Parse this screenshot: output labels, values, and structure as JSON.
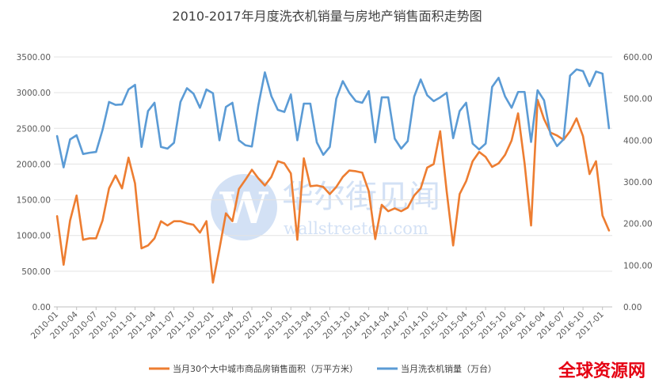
{
  "chart_data": {
    "type": "line",
    "title": "2010-2017年月度洗衣机销量与房地产销售面积走势图",
    "y_left": {
      "ticks": [
        "0.00",
        "500.00",
        "1000.00",
        "1500.00",
        "2000.00",
        "2500.00",
        "3000.00",
        "3500.00"
      ],
      "ylim": [
        0,
        3500
      ]
    },
    "y_right": {
      "ticks": [
        "0.00",
        "100.00",
        "200.00",
        "300.00",
        "400.00",
        "500.00",
        "600.00"
      ],
      "ylim": [
        0,
        600
      ]
    },
    "x_tick_labels": [
      "2010-01",
      "2010-04",
      "2010-07",
      "2010-10",
      "2011-01",
      "2011-04",
      "2011-07",
      "2011-10",
      "2012-01",
      "2012-04",
      "2012-07",
      "2012-10",
      "2013-01",
      "2013-04",
      "2013-07",
      "2013-10",
      "2014-01",
      "2014-04",
      "2014-07",
      "2014-10",
      "2015-01",
      "2015-04",
      "2015-07",
      "2015-10",
      "2016-01",
      "2016-04",
      "2016-07",
      "2016-10",
      "2017-01"
    ],
    "x_start": "2010-01",
    "grid": true,
    "legend_position": "bottom",
    "series": [
      {
        "name": "当月30个大中城市商品房销售面积（万平方米）",
        "axis": "left",
        "color": "#ED7D31",
        "values": [
          1270,
          590,
          1210,
          1560,
          940,
          960,
          960,
          1210,
          1660,
          1840,
          1660,
          2090,
          1730,
          820,
          860,
          960,
          1200,
          1140,
          1200,
          1200,
          1170,
          1150,
          1040,
          1200,
          340,
          810,
          1310,
          1200,
          1650,
          1780,
          1920,
          1800,
          1700,
          1820,
          2040,
          2010,
          1870,
          940,
          2080,
          1690,
          1700,
          1680,
          1580,
          1680,
          1820,
          1910,
          1900,
          1880,
          1620,
          950,
          1430,
          1340,
          1380,
          1340,
          1390,
          1560,
          1660,
          1950,
          2000,
          2460,
          1620,
          860,
          1580,
          1760,
          2040,
          2170,
          2100,
          1960,
          2010,
          2130,
          2330,
          2710,
          2010,
          1140,
          2900,
          2630,
          2440,
          2400,
          2340,
          2460,
          2640,
          2390,
          1860,
          2040,
          1280,
          1070
        ]
      },
      {
        "name": "当月洗衣机销量（万台）",
        "axis": "right",
        "color": "#5B9BD5",
        "values": [
          410,
          335,
          402,
          412,
          367,
          370,
          372,
          425,
          492,
          485,
          486,
          522,
          533,
          384,
          470,
          490,
          384,
          380,
          394,
          492,
          525,
          512,
          478,
          522,
          513,
          400,
          480,
          490,
          400,
          388,
          385,
          484,
          563,
          506,
          473,
          468,
          510,
          400,
          488,
          488,
          395,
          365,
          384,
          500,
          542,
          514,
          494,
          490,
          518,
          395,
          503,
          503,
          404,
          380,
          398,
          505,
          546,
          508,
          494,
          503,
          514,
          405,
          470,
          490,
          392,
          378,
          392,
          528,
          550,
          505,
          478,
          516,
          516,
          396,
          520,
          496,
          414,
          386,
          402,
          555,
          570,
          566,
          530,
          565,
          560,
          429
        ]
      }
    ],
    "watermark": {
      "brand": "华尔街见闻",
      "url": "wallstreetcn.com",
      "logo_letter": "W"
    },
    "corner_brand": "全球资源网"
  }
}
